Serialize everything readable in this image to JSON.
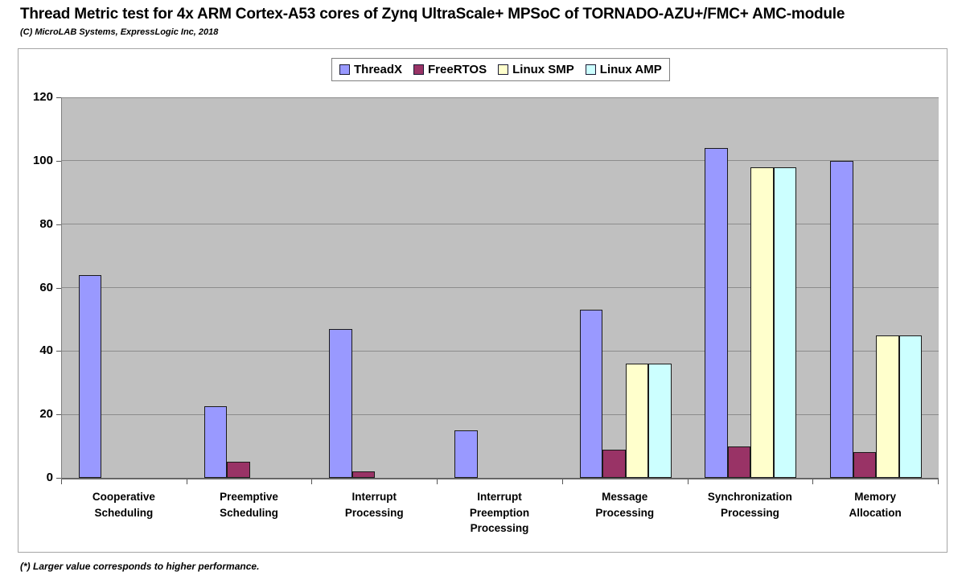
{
  "header": {
    "title": "Thread Metric test for 4x ARM Cortex-A53 cores of Zynq UltraScale+ MPSoC of TORNADO-AZU+/FMC+ AMC-module",
    "subtitle": "(C) MicroLAB Systems, ExpressLogic Inc, 2018"
  },
  "footnote": "(*) Larger value corresponds to higher performance.",
  "chart_data": {
    "type": "bar",
    "title": "Thread Metric test for 4x ARM Cortex-A53 cores of Zynq UltraScale+ MPSoC of TORNADO-AZU+/FMC+ AMC-module",
    "categories": [
      "Cooperative Scheduling",
      "Preemptive Scheduling",
      "Interrupt Processing",
      "Interrupt Preemption Processing",
      "Message Processing",
      "Synchronization Processing",
      "Memory Allocation"
    ],
    "series": [
      {
        "name": "ThreadX",
        "color": "#9999ff",
        "values": [
          64,
          22.5,
          47,
          15,
          53,
          104,
          100
        ]
      },
      {
        "name": "FreeRTOS",
        "color": "#993366",
        "values": [
          0,
          5,
          2,
          0,
          9,
          10,
          8
        ]
      },
      {
        "name": "Linux SMP",
        "color": "#ffffcc",
        "values": [
          0,
          0,
          0,
          0,
          36,
          98,
          45
        ]
      },
      {
        "name": "Linux AMP",
        "color": "#ccffff",
        "values": [
          0,
          0,
          0,
          0,
          36,
          98,
          45
        ]
      }
    ],
    "xlabel": "",
    "ylabel": "",
    "ylim": [
      0,
      120
    ],
    "yticks": [
      0,
      20,
      40,
      60,
      80,
      100,
      120
    ],
    "grid": true,
    "legend_position": "top-center",
    "plot_bg_color": "#c0c0c0",
    "gridline_color": "#8c8c8c"
  }
}
